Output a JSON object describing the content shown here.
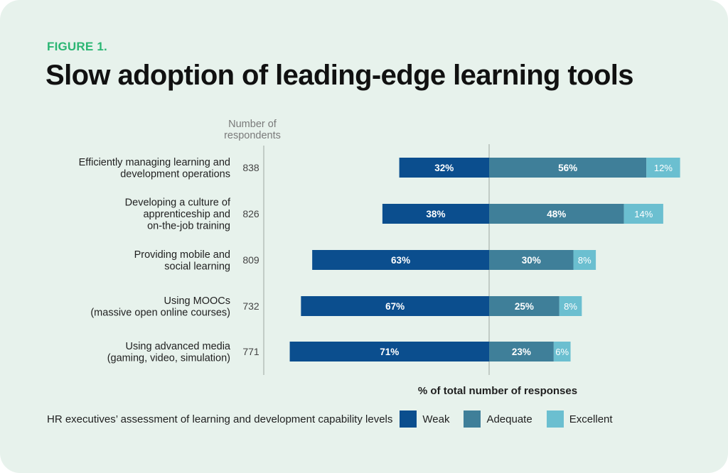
{
  "figure_label": "FIGURE 1.",
  "title": "Slow adoption of leading-edge learning tools",
  "legend": {
    "title": "HR executives’ assessment of learning and development capability levels"
  },
  "colors": {
    "background": "#e7f2ec",
    "weak": "#0b4e8e",
    "adequate": "#3f7f99",
    "excellent": "#6bbfd0",
    "accent": "#2bb673"
  },
  "chart_data": {
    "type": "bar",
    "orientation": "horizontal-diverging",
    "respondents_header": [
      "Number of",
      "respondents"
    ],
    "xlabel": "% of total number of responses",
    "categories": [
      [
        "Efficiently managing learning and",
        "development operations"
      ],
      [
        "Developing a culture of",
        "apprenticeship and",
        "on-the-job training"
      ],
      [
        "Providing mobile and",
        "social learning"
      ],
      [
        "Using MOOCs",
        "(massive open online courses)"
      ],
      [
        "Using advanced media",
        "(gaming, video, simulation)"
      ]
    ],
    "respondents": [
      "838",
      "826",
      "809",
      "732",
      "771"
    ],
    "series": [
      {
        "name": "Weak",
        "color": "#0b4e8e",
        "values": [
          32,
          38,
          63,
          67,
          71
        ]
      },
      {
        "name": "Adequate",
        "color": "#3f7f99",
        "values": [
          56,
          48,
          30,
          25,
          23
        ]
      },
      {
        "name": "Excellent",
        "color": "#6bbfd0",
        "values": [
          12,
          14,
          8,
          8,
          6
        ]
      }
    ],
    "value_suffix": "%"
  }
}
